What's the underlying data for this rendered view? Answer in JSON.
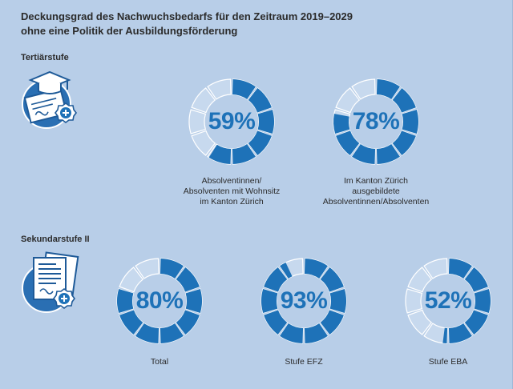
{
  "title": {
    "line1": "Deckungsgrad des Nachwuchsbedarfs für den Zeitraum 2019–2029",
    "line2": "ohne eine Politik der Ausbildungsförderung"
  },
  "sections": [
    {
      "label": "Tertiärstufe"
    },
    {
      "label": "Sekundarstufe II"
    }
  ],
  "colors": {
    "filled": "#1e72b8",
    "empty": "#c7d9ee",
    "empty_stroke": "#ffffff",
    "background": "#b8cee8"
  },
  "chart_data": [
    {
      "type": "pie",
      "subtype": "segmented-donut",
      "segments": 10,
      "value": 59,
      "label": "59%",
      "caption": [
        "Absolventinnen/",
        "Absolventen mit Wohnsitz",
        "im Kanton Zürich"
      ],
      "section": "Tertiärstufe"
    },
    {
      "type": "pie",
      "subtype": "segmented-donut",
      "segments": 10,
      "value": 78,
      "label": "78%",
      "caption": [
        "Im Kanton Zürich",
        "ausgebildete",
        "Absolventinnen/Absolventen"
      ],
      "section": "Tertiärstufe"
    },
    {
      "type": "pie",
      "subtype": "segmented-donut",
      "segments": 10,
      "value": 80,
      "label": "80%",
      "caption": [
        "Total"
      ],
      "section": "Sekundarstufe II"
    },
    {
      "type": "pie",
      "subtype": "segmented-donut",
      "segments": 10,
      "value": 93,
      "label": "93%",
      "caption": [
        "Stufe EFZ"
      ],
      "section": "Sekundarstufe II"
    },
    {
      "type": "pie",
      "subtype": "segmented-donut",
      "segments": 10,
      "value": 52,
      "label": "52%",
      "caption": [
        "Stufe EBA"
      ],
      "section": "Sekundarstufe II"
    }
  ]
}
